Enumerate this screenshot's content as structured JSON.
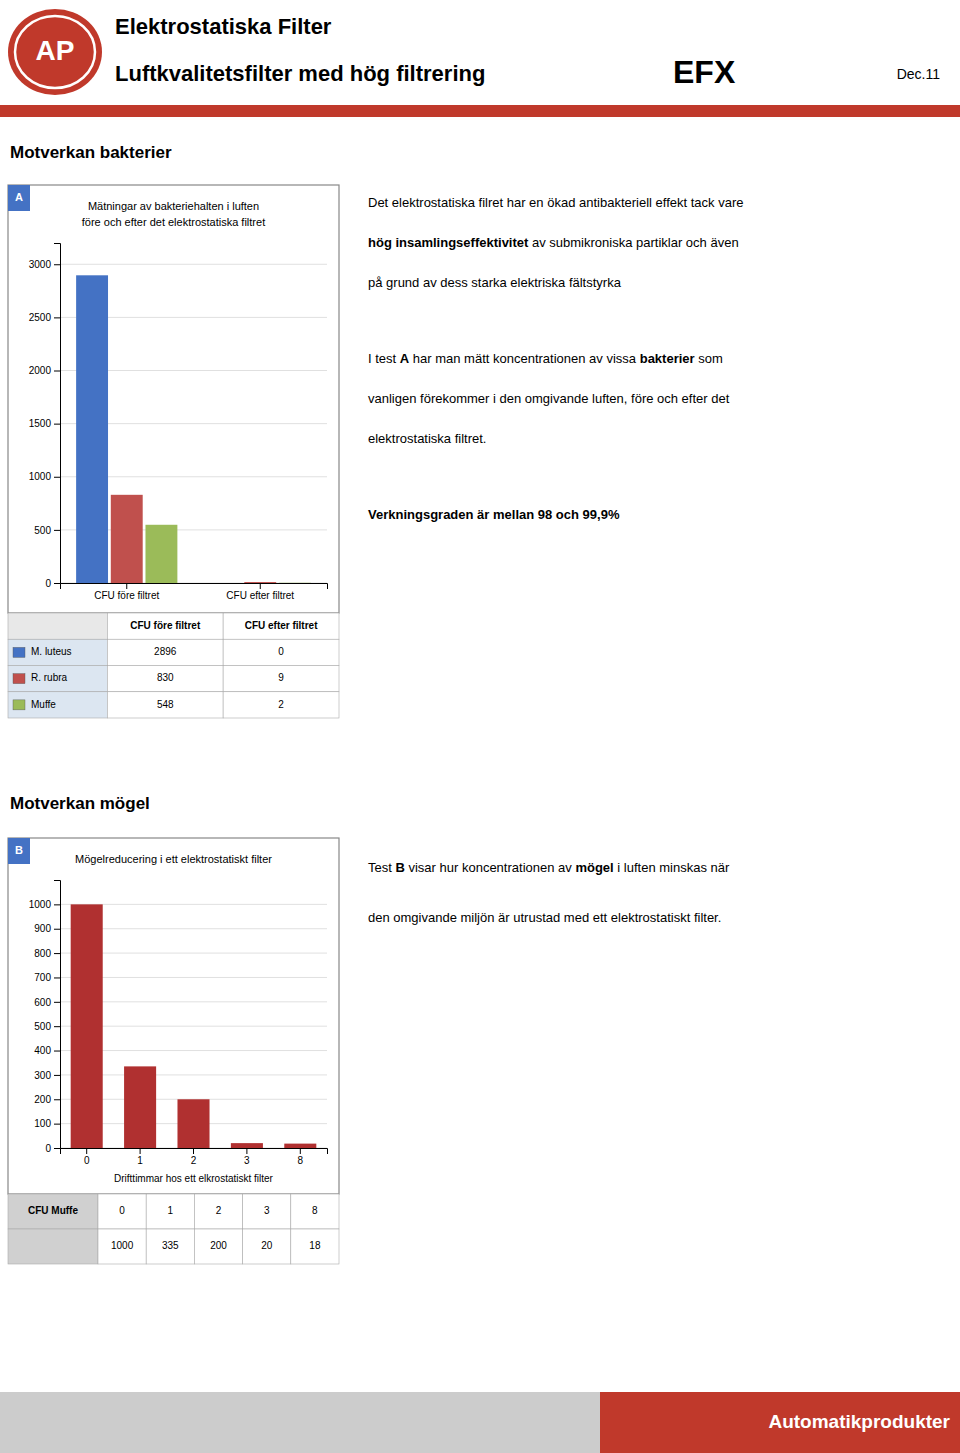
{
  "page": {
    "logo": "AP",
    "title_lines": [
      "Elektrostatiska Filter",
      "Luftkvalitetsfilter med hög filtrering"
    ],
    "brand": "EFX",
    "date": "Dec.11",
    "accent_color": "#c0392b",
    "sections": [
      "Motverkan bakterier",
      "Motverkan mögel"
    ],
    "panel_labels": [
      "A",
      "B"
    ],
    "texts": [
      [
        [
          [
            {
              "text": "Det elektrostatiska filret har en ökad antibakteriell effekt tack vare",
              "bold": false
            }
          ],
          [
            {
              "text": "hög insamlingseffektivitet",
              "bold": true
            },
            {
              "text": " av submikroniska partiklar och även",
              "bold": false
            }
          ],
          [
            {
              "text": "på grund av dess starka elektriska fältstyrka",
              "bold": false
            }
          ]
        ],
        [
          [
            {
              "text": "I test ",
              "bold": false
            },
            {
              "text": "A",
              "bold": true
            },
            {
              "text": " har man mätt koncentrationen av vissa ",
              "bold": false
            },
            {
              "text": "bakterier",
              "bold": true
            },
            {
              "text": " som",
              "bold": false
            }
          ],
          [
            {
              "text": "vanligen förekommer i den omgivande luften, före och efter det",
              "bold": false
            }
          ],
          [
            {
              "text": "elektrostatiska filtret.",
              "bold": false
            }
          ]
        ],
        [
          [
            {
              "text": "Verkningsgraden är mellan 98 och 99,9%",
              "bold": true
            }
          ]
        ]
      ],
      [
        [
          [
            {
              "text": "Test ",
              "bold": false
            },
            {
              "text": "B",
              "bold": true
            },
            {
              "text": " visar hur koncentrationen av ",
              "bold": false
            },
            {
              "text": "mögel",
              "bold": true
            },
            {
              "text": " i luften minskas när",
              "bold": false
            }
          ],
          [
            {
              "text": "den omgivande miljön är utrustad med ett elektrostatiskt filter.",
              "bold": false
            }
          ]
        ]
      ]
    ],
    "table_row_label": "CFU Muffe",
    "footer": "Automatikprodukter"
  },
  "chart_data": [
    {
      "type": "bar",
      "title": "Mätningar av bakteriehalten i luften",
      "subtitle": "före och efter det elektrostatiska filtret",
      "categories": [
        "CFU före filtret",
        "CFU efter filtret"
      ],
      "series": [
        {
          "name": "M. luteus",
          "color": "#4472c4",
          "values": [
            2896,
            0
          ]
        },
        {
          "name": "R. rubra",
          "color": "#c0504d",
          "values": [
            830,
            9
          ]
        },
        {
          "name": "Muffe",
          "color": "#9bbb59",
          "values": [
            548,
            2
          ]
        }
      ],
      "ylim": [
        0,
        3200
      ],
      "yticks": [
        0,
        500,
        1000,
        1500,
        2000,
        2500,
        3000
      ],
      "grid": true
    },
    {
      "type": "bar",
      "title": "Mögelreducering i ett elektrostatiskt filter",
      "x_label": "Drifttimmar hos ett elkrostatiskt filter",
      "categories": [
        "0",
        "1",
        "2",
        "3",
        "8"
      ],
      "values": [
        1000,
        335,
        200,
        20,
        18
      ],
      "color": "#b03030",
      "ylim": [
        0,
        1100
      ],
      "yticks": [
        0,
        100,
        200,
        300,
        400,
        500,
        600,
        700,
        800,
        900,
        1000
      ],
      "grid": true
    }
  ]
}
